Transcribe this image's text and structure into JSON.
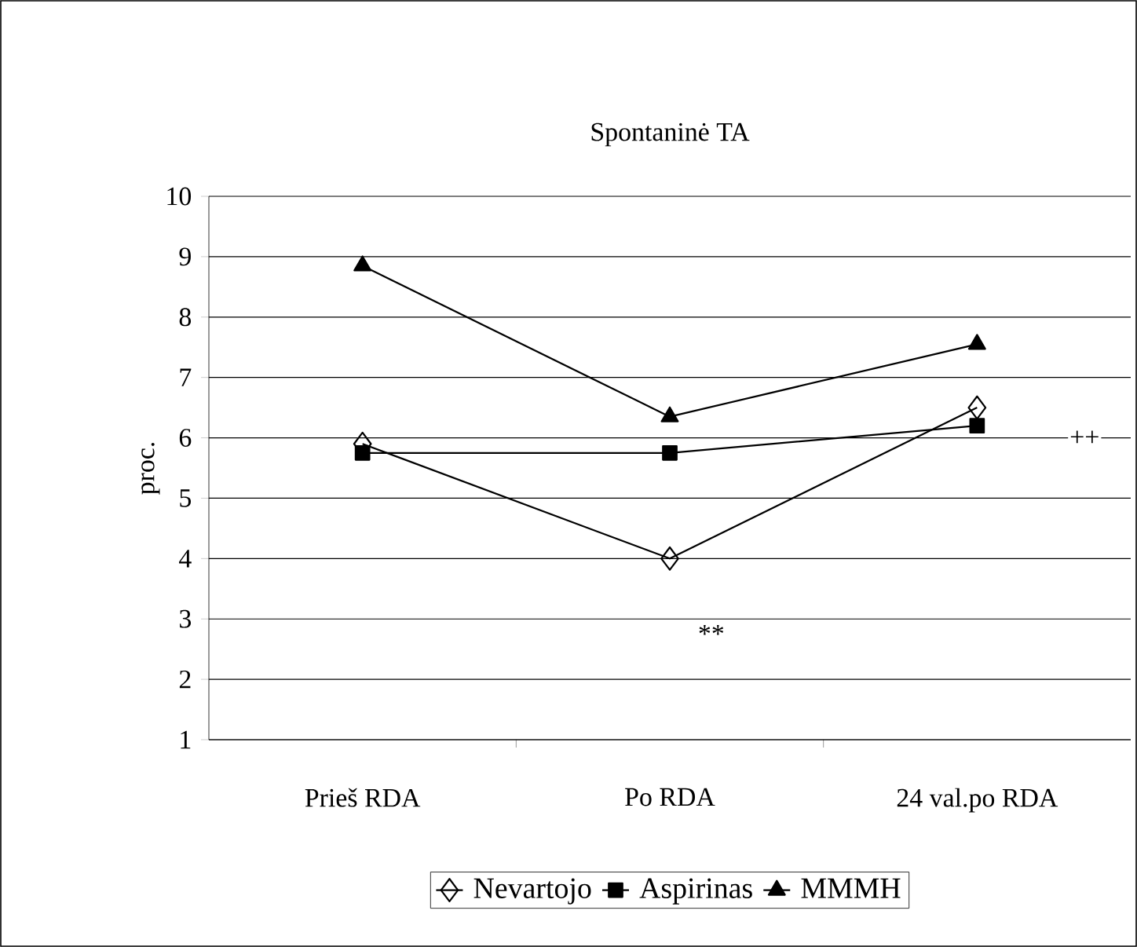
{
  "chart_data": {
    "type": "line",
    "title": "Spontaninė TA",
    "ylabel": "proc.",
    "categories": [
      "Prieš RDA",
      "Po RDA",
      "24 val.po RDA"
    ],
    "series": [
      {
        "name": "Nevartojo",
        "color": "#000000",
        "marker": "diamond",
        "values": [
          5.9,
          4.0,
          6.5
        ]
      },
      {
        "name": "Aspirinas",
        "color": "#000000",
        "marker": "square",
        "values": [
          5.75,
          5.75,
          6.2
        ]
      },
      {
        "name": "MMMH",
        "color": "#000000",
        "marker": "triangle",
        "values": [
          8.85,
          6.35,
          7.55
        ]
      }
    ],
    "ylim": [
      1,
      10
    ],
    "yticks": [
      1,
      2,
      3,
      4,
      5,
      6,
      7,
      8,
      9,
      10
    ],
    "grid": "y",
    "legend": "bottom",
    "line_style": "solid",
    "annotations": [
      "**",
      "++"
    ]
  }
}
